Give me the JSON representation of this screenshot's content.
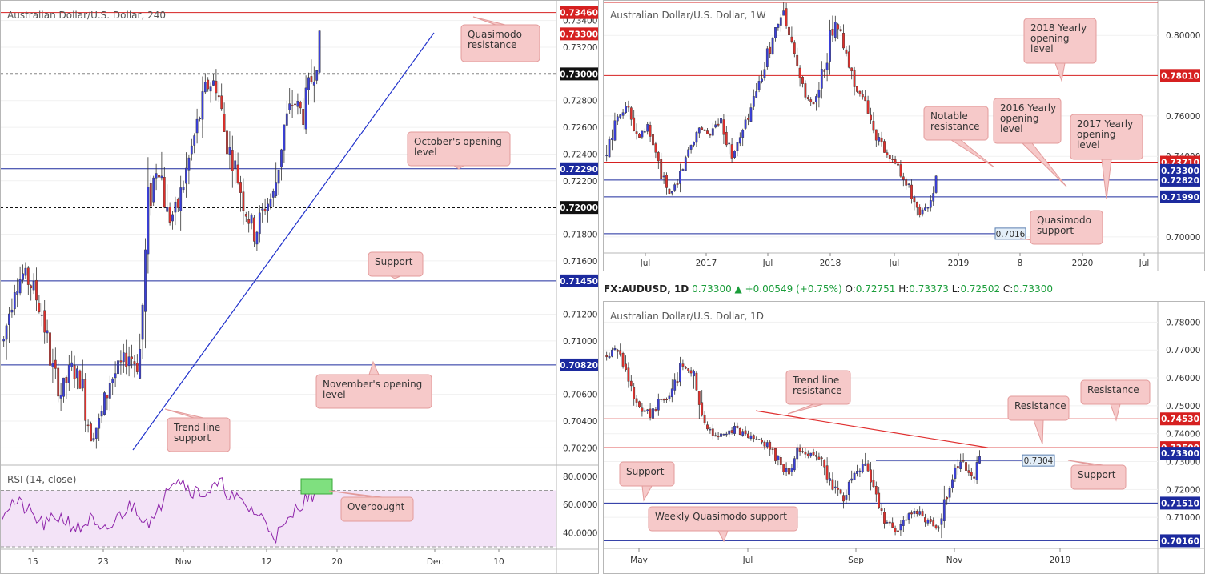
{
  "colors": {
    "up": "#3a3fd9",
    "down": "#e0302c",
    "red_level": "#d62020",
    "blue_level": "#1c2a9e",
    "callout_fill": "#f6c9c9",
    "callout_stroke": "#e39b9b",
    "rsi": "#8e24aa",
    "rsi_band": "#f3e3f7",
    "overbought_box": "#7fe07f"
  },
  "left_chart": {
    "title": "Australian Dollar/U.S. Dollar, 240",
    "price_labels": [
      "0.73400",
      "0.73200",
      "0.72800",
      "0.72600",
      "0.72400",
      "0.72200",
      "0.71800",
      "0.71600",
      "0.71200",
      "0.71000",
      "0.70600",
      "0.70400",
      "0.70200"
    ],
    "tags": [
      {
        "text": "0.73460",
        "kind": "red"
      },
      {
        "text": "0.73300",
        "kind": "red"
      },
      {
        "text": "0.73000",
        "kind": "black"
      },
      {
        "text": "0.72290",
        "kind": "blue"
      },
      {
        "text": "0.72000",
        "kind": "black"
      },
      {
        "text": "0.71450",
        "kind": "blue"
      },
      {
        "text": "0.70820",
        "kind": "blue"
      }
    ],
    "callouts": [
      "Quasimodo resistance",
      "October's opening level",
      "Support",
      "November's opening level",
      "Trend line support",
      "Overbought"
    ],
    "x_labels": [
      "15",
      "23",
      "Nov",
      "12",
      "20",
      "Dec",
      "10"
    ],
    "rsi": {
      "title": "RSI (14, close)",
      "labels": [
        "80.0000",
        "60.0000",
        "40.0000"
      ],
      "upper": 70,
      "lower": 30
    }
  },
  "weekly_chart": {
    "title": "Australian Dollar/U.S. Dollar, 1W",
    "price_labels": [
      "0.80000",
      "0.76000",
      "0.74000",
      "0.70000"
    ],
    "tags": [
      {
        "text": "0.78010",
        "kind": "red"
      },
      {
        "text": "0.73710",
        "kind": "red"
      },
      {
        "text": "0.73300",
        "kind": "blue"
      },
      {
        "text": "0.72820",
        "kind": "blue"
      },
      {
        "text": "0.71990",
        "kind": "blue"
      }
    ],
    "inline_tag": "0.7016",
    "callouts": [
      "2018 Yearly opening level",
      "Notable resistance",
      "2016 Yearly opening level",
      "2017 Yearly opening level",
      "Quasimodo support"
    ],
    "x_labels": [
      "Jul",
      "2017",
      "Jul",
      "2018",
      "Jul",
      "2019",
      "8",
      "2020",
      "Jul"
    ]
  },
  "info_bar": {
    "symbol": "FX:AUDUSD, 1D",
    "last": "0.73300",
    "change": "+0.00549 (+0.75%)",
    "o_label": "O:",
    "o": "0.72751",
    "h_label": "H:",
    "h": "0.73373",
    "l_label": "L:",
    "l": "0.72502",
    "c_label": "C:",
    "c": "0.73300"
  },
  "daily_chart": {
    "title": "Australian Dollar/U.S. Dollar, 1D",
    "price_labels": [
      "0.78000",
      "0.77000",
      "0.76000",
      "0.75000",
      "0.74000",
      "0.73000",
      "0.72000",
      "0.71000"
    ],
    "tags": [
      {
        "text": "0.74530",
        "kind": "red"
      },
      {
        "text": "0.73500",
        "kind": "red"
      },
      {
        "text": "0.73300",
        "kind": "blue"
      },
      {
        "text": "0.71510",
        "kind": "blue"
      },
      {
        "text": "0.70160",
        "kind": "blue"
      }
    ],
    "inline_tag": "0.7304",
    "callouts": [
      "Trend line resistance",
      "Resistance",
      "Resistance",
      "Support",
      "Support",
      "Weekly Quasimodo support"
    ],
    "x_labels": [
      "May",
      "Jul",
      "Sep",
      "Nov",
      "2019"
    ]
  },
  "chart_data": [
    {
      "type": "candlestick",
      "title": "Australian Dollar/U.S. Dollar, 240",
      "ylim": [
        0.701,
        0.735
      ],
      "levels": [
        0.7346,
        0.73,
        0.7229,
        0.72,
        0.7145,
        0.7082
      ],
      "series": [
        {
          "name": "price path",
          "values": [
            0.71,
            0.714,
            0.715,
            0.714,
            0.712,
            0.708,
            0.706,
            0.708,
            0.707,
            0.703,
            0.704,
            0.707,
            0.708,
            0.709,
            0.708,
            0.72,
            0.724,
            0.719,
            0.72,
            0.723,
            0.726,
            0.729,
            0.7295,
            0.725,
            0.723,
            0.72,
            0.718,
            0.72,
            0.721,
            0.726,
            0.728,
            0.727,
            0.73,
            0.733
          ]
        }
      ]
    },
    {
      "type": "line",
      "title": "RSI (14, close)",
      "ylim": [
        30,
        85
      ]
    },
    {
      "type": "candlestick",
      "title": "Australian Dollar/U.S. Dollar, 1W",
      "ylim": [
        0.694,
        0.814
      ],
      "levels": [
        0.7801,
        0.7371,
        0.733,
        0.7282,
        0.7199,
        0.7016
      ],
      "series": [
        {
          "name": "price path",
          "values": [
            0.74,
            0.76,
            0.765,
            0.75,
            0.755,
            0.735,
            0.72,
            0.73,
            0.745,
            0.755,
            0.75,
            0.76,
            0.74,
            0.75,
            0.765,
            0.78,
            0.8,
            0.81,
            0.79,
            0.77,
            0.765,
            0.785,
            0.81,
            0.79,
            0.775,
            0.765,
            0.75,
            0.74,
            0.735,
            0.725,
            0.71,
            0.715,
            0.733
          ]
        }
      ]
    },
    {
      "type": "candlestick",
      "title": "Australian Dollar/U.S. Dollar, 1D",
      "ylim": [
        0.7,
        0.785
      ],
      "levels": [
        0.7453,
        0.735,
        0.733,
        0.7151,
        0.7016
      ],
      "series": [
        {
          "name": "price path",
          "values": [
            0.768,
            0.77,
            0.758,
            0.75,
            0.747,
            0.752,
            0.753,
            0.765,
            0.762,
            0.745,
            0.738,
            0.74,
            0.742,
            0.739,
            0.738,
            0.736,
            0.73,
            0.725,
            0.735,
            0.732,
            0.73,
            0.722,
            0.716,
            0.725,
            0.73,
            0.718,
            0.708,
            0.705,
            0.71,
            0.712,
            0.708,
            0.706,
            0.722,
            0.73,
            0.723,
            0.733
          ]
        }
      ]
    }
  ]
}
